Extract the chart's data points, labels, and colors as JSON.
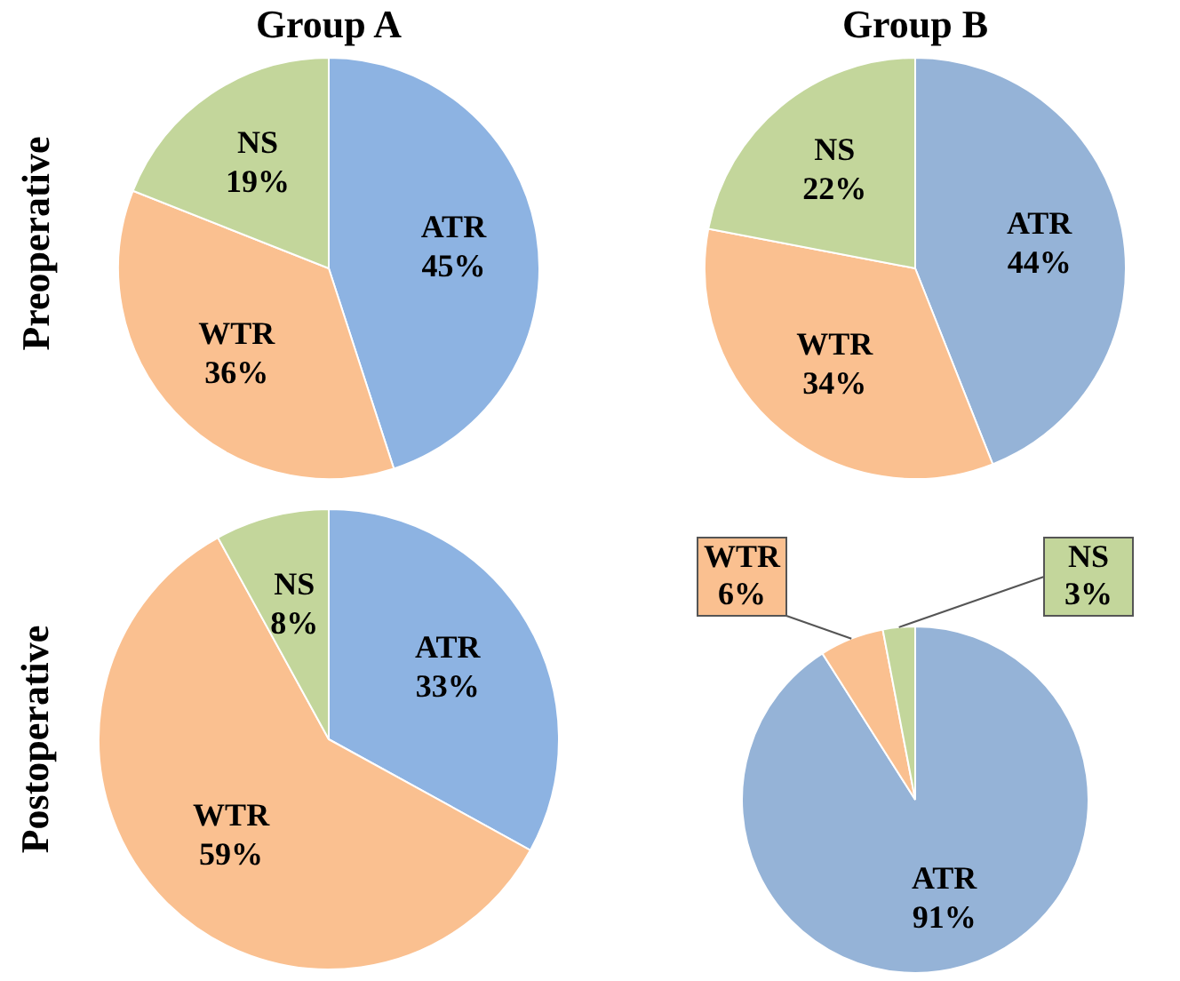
{
  "chart_data": [
    {
      "type": "pie",
      "title": "Group A",
      "ylabel": "Preoperative",
      "categories": [
        "ATR",
        "WTR",
        "NS"
      ],
      "values": [
        45,
        36,
        19
      ],
      "value_labels": [
        "45%",
        "36%",
        "19%"
      ],
      "colors": [
        "#8db3e2",
        "#fac090",
        "#c3d69b"
      ]
    },
    {
      "type": "pie",
      "title": "Group B",
      "categories": [
        "ATR",
        "WTR",
        "NS"
      ],
      "values": [
        44,
        34,
        22
      ],
      "value_labels": [
        "44%",
        "34%",
        "22%"
      ],
      "colors": [
        "#95b3d7",
        "#fac090",
        "#c3d69b"
      ]
    },
    {
      "type": "pie",
      "ylabel": "Postoperative",
      "categories": [
        "ATR",
        "WTR",
        "NS"
      ],
      "values": [
        33,
        59,
        8
      ],
      "value_labels": [
        "33%",
        "59%",
        "8%"
      ],
      "colors": [
        "#8db3e2",
        "#fac090",
        "#c3d69b"
      ]
    },
    {
      "type": "pie",
      "categories": [
        "ATR",
        "WTR",
        "NS"
      ],
      "values": [
        91,
        6,
        3
      ],
      "value_labels": [
        "91%",
        "6%",
        "3%"
      ],
      "colors": [
        "#95b3d7",
        "#fac090",
        "#c3d69b"
      ]
    }
  ]
}
